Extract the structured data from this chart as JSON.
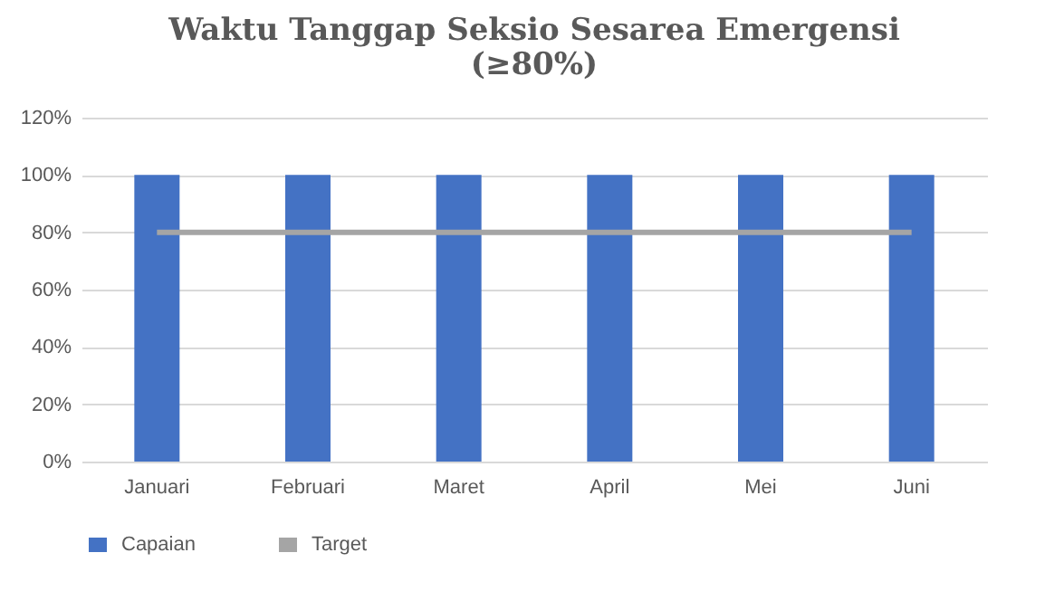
{
  "chart_data": {
    "type": "bar",
    "title": "Waktu Tanggap Seksio Sesarea Emergensi\n(≥80%)",
    "categories": [
      "Januari",
      "Februari",
      "Maret",
      "April",
      "Mei",
      "Juni"
    ],
    "series": [
      {
        "name": "Capaian",
        "color": "#4472c4",
        "values": [
          100,
          100,
          100,
          100,
          100,
          100
        ]
      },
      {
        "name": "Target",
        "type": "line",
        "color": "#a5a5a5",
        "values": [
          80,
          80,
          80,
          80,
          80,
          80
        ]
      }
    ],
    "ylim": [
      0,
      120
    ],
    "yticks": [
      {
        "value": 0,
        "label": "0%"
      },
      {
        "value": 20,
        "label": "20%"
      },
      {
        "value": 40,
        "label": "40%"
      },
      {
        "value": 60,
        "label": "60%"
      },
      {
        "value": 80,
        "label": "80%"
      },
      {
        "value": 100,
        "label": "100%"
      },
      {
        "value": 120,
        "label": "120%"
      }
    ],
    "grid": "y",
    "legend": "bottom",
    "marker": "none",
    "line_style": "solid"
  }
}
